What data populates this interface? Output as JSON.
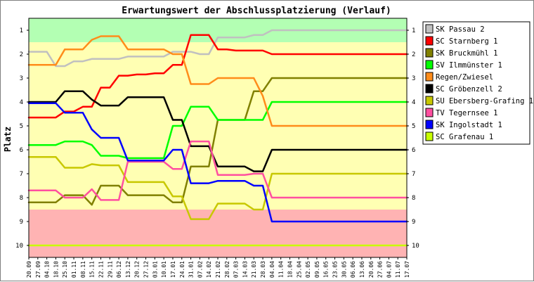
{
  "chart_data": {
    "type": "line",
    "title": "Erwartungswert der Abschlussplatzierung (Verlauf)",
    "ylabel": "Platz",
    "ylim": [
      1,
      10
    ],
    "y_ticks": [
      "1",
      "2",
      "3",
      "4",
      "5",
      "6",
      "7",
      "8",
      "9",
      "10"
    ],
    "x": [
      "20.09",
      "27.09",
      "04.10",
      "18.10",
      "25.10",
      "01.11",
      "08.11",
      "15.11",
      "22.11",
      "29.11",
      "06.12",
      "13.12",
      "20.12",
      "27.12",
      "03.01",
      "10.01",
      "17.01",
      "24.01",
      "31.01",
      "07.02",
      "14.02",
      "21.02",
      "28.02",
      "07.03",
      "14.03",
      "21.03",
      "28.03",
      "04.04",
      "11.04",
      "18.04",
      "25.04",
      "02.05",
      "09.05",
      "16.05",
      "23.05",
      "30.05",
      "06.06",
      "13.06",
      "20.06",
      "27.06",
      "04.07",
      "11.07",
      "17.07"
    ],
    "bands": [
      {
        "from": 0.5,
        "to": 1.5,
        "color": "#b3ffb3"
      },
      {
        "from": 1.5,
        "to": 8.5,
        "color": "#ffffb3"
      },
      {
        "from": 8.5,
        "to": 10.5,
        "color": "#ffb3b3"
      }
    ],
    "series": [
      {
        "name": "SK Passau 2",
        "color": "#c0c0c0",
        "values": [
          1.9,
          1.9,
          1.9,
          2.5,
          2.5,
          2.3,
          2.3,
          2.2,
          2.2,
          2.2,
          2.2,
          2.1,
          2.1,
          2.1,
          2.1,
          2.1,
          1.9,
          1.9,
          1.9,
          2.0,
          2.0,
          1.3,
          1.3,
          1.3,
          1.3,
          1.2,
          1.2,
          1.0,
          1.0,
          1.0,
          1.0,
          1.0,
          1.0,
          1.0,
          1.0,
          1.0,
          1.0,
          1.0,
          1.0,
          1.0,
          1.0,
          1.0,
          1.0
        ]
      },
      {
        "name": "SC Starnberg 1",
        "color": "#ff0000",
        "values": [
          4.65,
          4.65,
          4.65,
          4.65,
          4.4,
          4.4,
          4.2,
          4.2,
          3.4,
          3.4,
          2.9,
          2.9,
          2.85,
          2.85,
          2.8,
          2.8,
          2.45,
          2.45,
          1.2,
          1.2,
          1.2,
          1.8,
          1.8,
          1.85,
          1.85,
          1.85,
          1.85,
          2.0,
          2.0,
          2.0,
          2.0,
          2.0,
          2.0,
          2.0,
          2.0,
          2.0,
          2.0,
          2.0,
          2.0,
          2.0,
          2.0,
          2.0,
          2.0
        ]
      },
      {
        "name": "SK Bruckmühl 1",
        "color": "#808000",
        "values": [
          8.2,
          8.2,
          8.2,
          8.2,
          7.9,
          7.9,
          7.9,
          8.3,
          7.5,
          7.5,
          7.5,
          7.9,
          7.9,
          7.9,
          7.9,
          7.9,
          8.2,
          8.2,
          6.7,
          6.7,
          6.7,
          4.75,
          4.75,
          4.75,
          4.75,
          3.55,
          3.55,
          3.0,
          3.0,
          3.0,
          3.0,
          3.0,
          3.0,
          3.0,
          3.0,
          3.0,
          3.0,
          3.0,
          3.0,
          3.0,
          3.0,
          3.0,
          3.0
        ]
      },
      {
        "name": "SV Ilmmünster 1",
        "color": "#00ff00",
        "values": [
          5.8,
          5.8,
          5.8,
          5.8,
          5.65,
          5.65,
          5.65,
          5.8,
          6.25,
          6.25,
          6.25,
          6.35,
          6.35,
          6.35,
          6.35,
          6.35,
          5.0,
          5.0,
          4.2,
          4.2,
          4.2,
          4.75,
          4.75,
          4.75,
          4.75,
          4.75,
          4.75,
          4.0,
          4.0,
          4.0,
          4.0,
          4.0,
          4.0,
          4.0,
          4.0,
          4.0,
          4.0,
          4.0,
          4.0,
          4.0,
          4.0,
          4.0,
          4.0
        ]
      },
      {
        "name": "Regen/Zwiesel",
        "color": "#ff8c1a",
        "values": [
          2.45,
          2.45,
          2.45,
          2.45,
          1.8,
          1.8,
          1.8,
          1.4,
          1.25,
          1.25,
          1.25,
          1.8,
          1.8,
          1.8,
          1.8,
          1.8,
          2.0,
          2.0,
          3.25,
          3.25,
          3.25,
          3.0,
          3.0,
          3.0,
          3.0,
          3.0,
          3.75,
          5.0,
          5.0,
          5.0,
          5.0,
          5.0,
          5.0,
          5.0,
          5.0,
          5.0,
          5.0,
          5.0,
          5.0,
          5.0,
          5.0,
          5.0,
          5.0
        ]
      },
      {
        "name": "SC Gröbenzell 2",
        "color": "#000000",
        "values": [
          4.0,
          4.0,
          4.0,
          4.0,
          3.55,
          3.55,
          3.55,
          3.9,
          4.15,
          4.15,
          4.15,
          3.8,
          3.8,
          3.8,
          3.8,
          3.8,
          4.75,
          4.75,
          5.85,
          5.85,
          5.85,
          6.7,
          6.7,
          6.7,
          6.7,
          6.9,
          6.9,
          6.0,
          6.0,
          6.0,
          6.0,
          6.0,
          6.0,
          6.0,
          6.0,
          6.0,
          6.0,
          6.0,
          6.0,
          6.0,
          6.0,
          6.0,
          6.0
        ]
      },
      {
        "name": "SU Ebersberg-Grafing 1",
        "color": "#c8c800",
        "values": [
          6.3,
          6.3,
          6.3,
          6.3,
          6.75,
          6.75,
          6.75,
          6.6,
          6.65,
          6.65,
          6.65,
          7.35,
          7.35,
          7.35,
          7.35,
          7.35,
          7.95,
          7.95,
          8.9,
          8.9,
          8.9,
          8.25,
          8.25,
          8.25,
          8.25,
          8.5,
          8.5,
          7.0,
          7.0,
          7.0,
          7.0,
          7.0,
          7.0,
          7.0,
          7.0,
          7.0,
          7.0,
          7.0,
          7.0,
          7.0,
          7.0,
          7.0,
          7.0
        ]
      },
      {
        "name": "TV Tegernsee 1",
        "color": "#ff4fa0",
        "values": [
          7.7,
          7.7,
          7.7,
          7.7,
          8.0,
          8.0,
          8.0,
          7.65,
          8.1,
          8.1,
          8.1,
          6.5,
          6.5,
          6.5,
          6.5,
          6.5,
          6.8,
          6.8,
          5.65,
          5.65,
          5.65,
          7.05,
          7.05,
          7.05,
          7.05,
          7.0,
          7.0,
          8.0,
          8.0,
          8.0,
          8.0,
          8.0,
          8.0,
          8.0,
          8.0,
          8.0,
          8.0,
          8.0,
          8.0,
          8.0,
          8.0,
          8.0,
          8.0
        ]
      },
      {
        "name": "SK Ingolstadt 1",
        "color": "#0000ff",
        "values": [
          4.05,
          4.05,
          4.05,
          4.05,
          4.45,
          4.45,
          4.45,
          5.15,
          5.5,
          5.5,
          5.5,
          6.45,
          6.45,
          6.45,
          6.45,
          6.45,
          6.0,
          6.0,
          7.4,
          7.4,
          7.4,
          7.3,
          7.3,
          7.3,
          7.3,
          7.5,
          7.5,
          9.0,
          9.0,
          9.0,
          9.0,
          9.0,
          9.0,
          9.0,
          9.0,
          9.0,
          9.0,
          9.0,
          9.0,
          9.0,
          9.0,
          9.0,
          9.0
        ]
      },
      {
        "name": "SC Grafenau 1",
        "color": "#c8ff00",
        "values": [
          10,
          10,
          10,
          10,
          10,
          10,
          10,
          10,
          10,
          10,
          10,
          10,
          10,
          10,
          10,
          10,
          10,
          10,
          10,
          10,
          10,
          10,
          10,
          10,
          10,
          10,
          10,
          10,
          10,
          10,
          10,
          10,
          10,
          10,
          10,
          10,
          10,
          10,
          10,
          10,
          10,
          10,
          10
        ]
      }
    ],
    "legend": {
      "position": "right"
    }
  }
}
